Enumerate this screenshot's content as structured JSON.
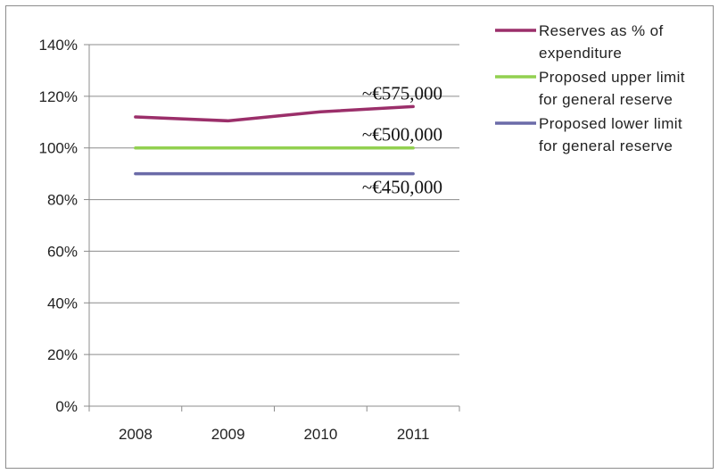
{
  "chart_data": {
    "type": "line",
    "categories": [
      "2008",
      "2009",
      "2010",
      "2011"
    ],
    "ylim": [
      0,
      140
    ],
    "yticks": [
      "0%",
      "20%",
      "40%",
      "60%",
      "80%",
      "100%",
      "120%",
      "140%"
    ],
    "grid": true,
    "legend_position": "right",
    "series": [
      {
        "name": "Reserves as % of expenditure",
        "name_lines": [
          "Reserves as % of",
          "expenditure"
        ],
        "color": "#9b2f6a",
        "values": [
          112,
          110.5,
          114,
          116
        ]
      },
      {
        "name": "Proposed upper limit for general reserve",
        "name_lines": [
          "Proposed upper limit",
          "for general reserve"
        ],
        "color": "#92d050",
        "values": [
          100,
          100,
          100,
          100
        ]
      },
      {
        "name": "Proposed lower limit for general reserve",
        "name_lines": [
          "Proposed lower limit",
          "for general reserve"
        ],
        "color": "#6b6ba8",
        "values": [
          90,
          90,
          90,
          90
        ]
      }
    ],
    "annotations": [
      {
        "text": "~€575,000",
        "series": 0
      },
      {
        "text": "~€500,000",
        "series": 1
      },
      {
        "text": "~€450,000",
        "series": 2
      }
    ]
  }
}
